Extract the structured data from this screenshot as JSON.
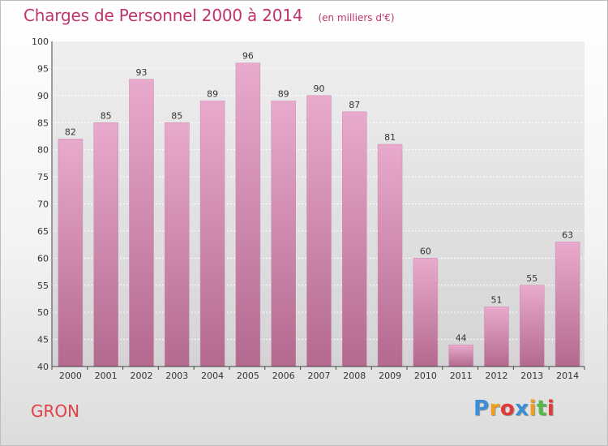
{
  "title": "Charges de Personnel 2000 à 2014",
  "subtitle": "(en milliers d'€)",
  "commune": "GRON",
  "logo": {
    "letters": [
      "P",
      "r",
      "o",
      "x",
      "i",
      "t",
      "i"
    ],
    "colors": [
      "#3a8fd6",
      "#f0a020",
      "#e23a3a",
      "#3a8fd6",
      "#f0a020",
      "#54b948",
      "#e23a3a"
    ]
  },
  "colors": {
    "bar_top": "#e8aacd",
    "bar_bottom": "#b4698f",
    "title": "#c0336e",
    "commune": "#e04048"
  },
  "chart_data": {
    "type": "bar",
    "title": "Charges de Personnel 2000 à 2014",
    "subtitle": "(en milliers d'€)",
    "categories": [
      "2000",
      "2001",
      "2002",
      "2003",
      "2004",
      "2005",
      "2006",
      "2007",
      "2008",
      "2009",
      "2010",
      "2011",
      "2012",
      "2013",
      "2014"
    ],
    "values": [
      82,
      85,
      93,
      85,
      89,
      96,
      89,
      90,
      87,
      81,
      60,
      44,
      51,
      55,
      63
    ],
    "ylim": [
      40,
      100
    ],
    "yticks": [
      "40",
      "45",
      "50",
      "55",
      "60",
      "65",
      "70",
      "75",
      "80",
      "85",
      "90",
      "95",
      "100"
    ],
    "grid": true,
    "data_labels": true
  }
}
